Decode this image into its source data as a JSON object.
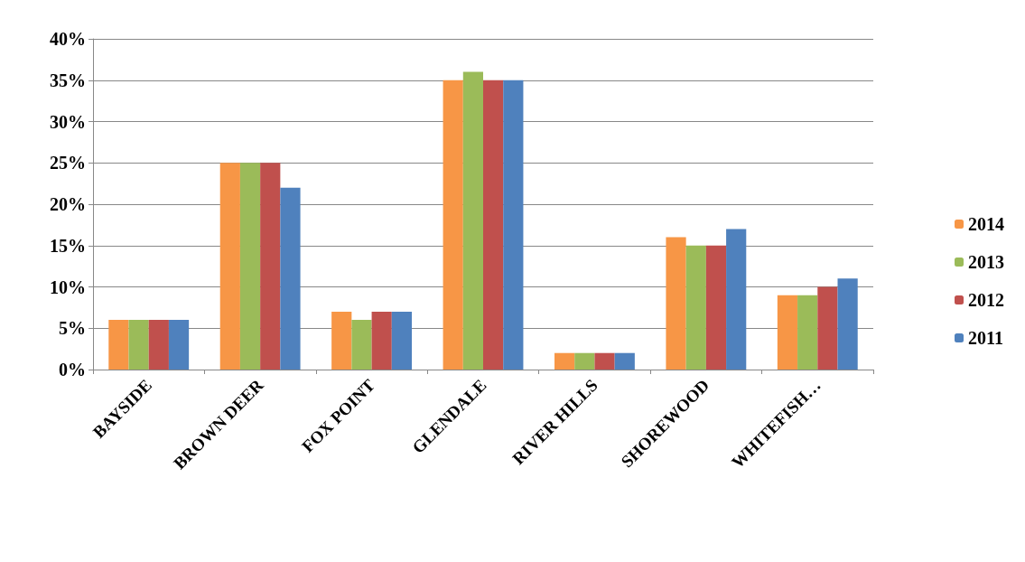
{
  "chart_data": {
    "type": "bar",
    "categories": [
      "BAYSIDE",
      "BROWN DEER",
      "FOX POINT",
      "GLENDALE",
      "RIVER HILLS",
      "SHOREWOOD",
      "WHITEFISH…"
    ],
    "series": [
      {
        "name": "2014",
        "color": "#f79646",
        "values": [
          6,
          25,
          7,
          35,
          2,
          16,
          9
        ]
      },
      {
        "name": "2013",
        "color": "#9bbb59",
        "values": [
          6,
          25,
          6,
          36,
          2,
          15,
          9
        ]
      },
      {
        "name": "2012",
        "color": "#c0504d",
        "values": [
          6,
          25,
          7,
          35,
          2,
          15,
          10
        ]
      },
      {
        "name": "2011",
        "color": "#4f81bd",
        "values": [
          6,
          22,
          7,
          35,
          2,
          17,
          11
        ]
      }
    ],
    "ylim": [
      0,
      40
    ],
    "yticks": [
      {
        "value": 0,
        "label": "0%"
      },
      {
        "value": 5,
        "label": "5%"
      },
      {
        "value": 10,
        "label": "10%"
      },
      {
        "value": 15,
        "label": "15%"
      },
      {
        "value": 20,
        "label": "20%"
      },
      {
        "value": 25,
        "label": "25%"
      },
      {
        "value": 30,
        "label": "30%"
      },
      {
        "value": 35,
        "label": "35%"
      },
      {
        "value": 40,
        "label": "40%"
      }
    ],
    "grid": "y",
    "legend": "right"
  }
}
